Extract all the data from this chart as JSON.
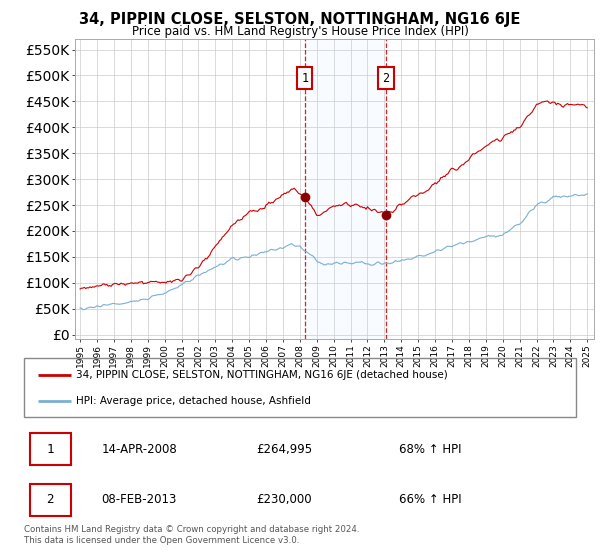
{
  "title": "34, PIPPIN CLOSE, SELSTON, NOTTINGHAM, NG16 6JE",
  "subtitle": "Price paid vs. HM Land Registry's House Price Index (HPI)",
  "sale1_year": 2008.29,
  "sale1_price": 264995,
  "sale2_year": 2013.1,
  "sale2_price": 230000,
  "sale1_date": "14-APR-2008",
  "sale1_hpi": "68% ↑ HPI",
  "sale2_date": "08-FEB-2013",
  "sale2_hpi": "66% ↑ HPI",
  "property_line_color": "#cc0000",
  "hpi_line_color": "#7aafd4",
  "shade_color": "#ddeeff",
  "background_color": "#ffffff",
  "grid_color": "#cccccc",
  "legend_property": "34, PIPPIN CLOSE, SELSTON, NOTTINGHAM, NG16 6JE (detached house)",
  "legend_hpi": "HPI: Average price, detached house, Ashfield",
  "footer": "Contains HM Land Registry data © Crown copyright and database right 2024.\nThis data is licensed under the Open Government Licence v3.0.",
  "yticks": [
    0,
    50000,
    100000,
    150000,
    200000,
    250000,
    300000,
    350000,
    400000,
    450000,
    500000,
    550000
  ],
  "ylim": [
    -8000,
    570000
  ]
}
